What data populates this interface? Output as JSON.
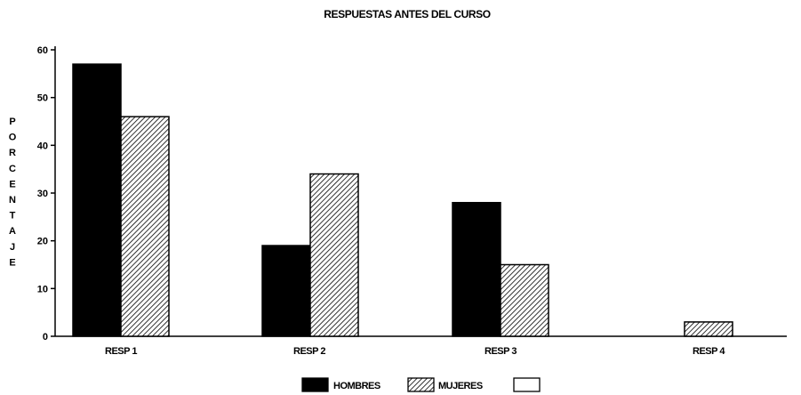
{
  "chart_data": {
    "type": "bar",
    "title": "RESPUESTAS ANTES DEL CURSO",
    "ylabel": "PORCENTAJE",
    "xlabel": "",
    "categories": [
      "RESP 1",
      "RESP 2",
      "RESP 3",
      "RESP 4"
    ],
    "series": [
      {
        "name": "HOMBRES",
        "values": [
          57,
          19,
          28,
          0
        ],
        "color": "#000000",
        "pattern": "solid"
      },
      {
        "name": "MUJERES",
        "values": [
          46,
          34,
          15,
          3
        ],
        "color": "#000000",
        "pattern": "diagonal-hatch"
      },
      {
        "name": "",
        "values": [
          0,
          0,
          0,
          0
        ],
        "color": "#ffffff",
        "pattern": "empty"
      }
    ],
    "ylim": [
      0,
      60
    ],
    "yticks": [
      "0",
      "10",
      "20",
      "30",
      "40",
      "50",
      "60"
    ],
    "grid": false,
    "legend": "bottom"
  }
}
